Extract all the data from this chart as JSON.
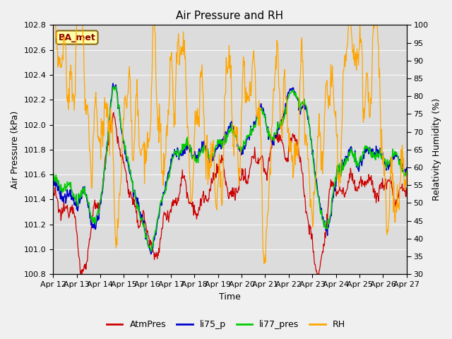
{
  "title": "Air Pressure and RH",
  "xlabel": "Time",
  "ylabel_left": "Air Pressure (kPa)",
  "ylabel_right": "Relativity Humidity (%)",
  "ylim_left": [
    100.8,
    102.8
  ],
  "ylim_right": [
    30,
    100
  ],
  "yticks_left": [
    100.8,
    101.0,
    101.2,
    101.4,
    101.6,
    101.8,
    102.0,
    102.2,
    102.4,
    102.6,
    102.8
  ],
  "yticks_right": [
    30,
    35,
    40,
    45,
    50,
    55,
    60,
    65,
    70,
    75,
    80,
    85,
    90,
    95,
    100
  ],
  "x_labels": [
    "Apr 12",
    "Apr 13",
    "Apr 14",
    "Apr 15",
    "Apr 16",
    "Apr 17",
    "Apr 18",
    "Apr 19",
    "Apr 20",
    "Apr 21",
    "Apr 22",
    "Apr 23",
    "Apr 24",
    "Apr 25",
    "Apr 26",
    "Apr 27"
  ],
  "colors": {
    "AtmPres": "#cc0000",
    "li75_p": "#0000cc",
    "li77_pres": "#00cc00",
    "RH": "#ffa500"
  },
  "legend_label": "BA_met",
  "fig_bg": "#f0f0f0",
  "plot_bg": "#dcdcdc",
  "n_points": 720
}
